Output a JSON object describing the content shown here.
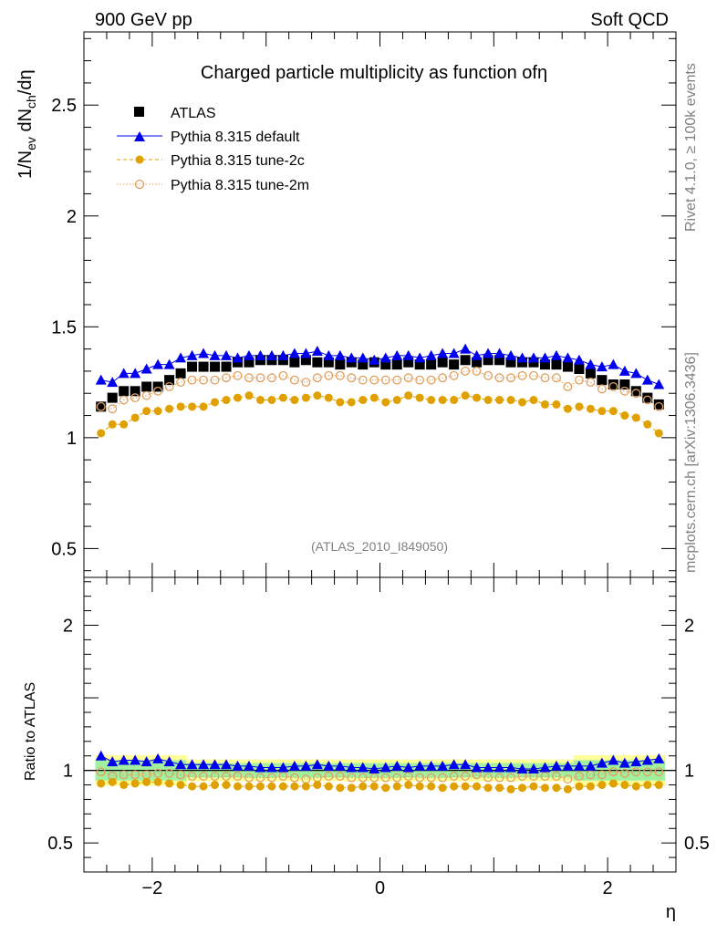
{
  "header": {
    "left": "900 GeV pp",
    "right": "Soft QCD"
  },
  "side_labels": {
    "rivet": "Rivet 4.1.0, ≥ 100k events",
    "mcplots": "mcplots.cern.ch [arXiv:1306.3436]"
  },
  "chart_data": [
    {
      "type": "scatter",
      "panel": "main",
      "title": "Charged particle multiplicity as function ofη",
      "xlabel": "η",
      "ylabel": "1/N_ev dN_ch/dη",
      "ylabel_parts": {
        "a": "1/N",
        "a_sub": "ev",
        "b": " dN",
        "b_sub": "ch",
        "c": "/dη"
      },
      "xlim": [
        -2.6,
        2.6
      ],
      "ylim": [
        0.37,
        2.83
      ],
      "yticks": [
        0.5,
        1,
        1.5,
        2,
        2.5
      ],
      "ytick_labels": [
        "0.5",
        "1",
        "1.5",
        "2",
        "2.5"
      ],
      "watermark": "(ATLAS_2010_I849050)",
      "legend_position": "top-left",
      "x": [
        -2.45,
        -2.35,
        -2.25,
        -2.15,
        -2.05,
        -1.95,
        -1.85,
        -1.75,
        -1.65,
        -1.55,
        -1.45,
        -1.35,
        -1.25,
        -1.15,
        -1.05,
        -0.95,
        -0.85,
        -0.75,
        -0.65,
        -0.55,
        -0.45,
        -0.35,
        -0.25,
        -0.15,
        -0.05,
        0.05,
        0.15,
        0.25,
        0.35,
        0.45,
        0.55,
        0.65,
        0.75,
        0.85,
        0.95,
        1.05,
        1.15,
        1.25,
        1.35,
        1.45,
        1.55,
        1.65,
        1.75,
        1.85,
        1.95,
        2.05,
        2.15,
        2.25,
        2.35,
        2.45
      ],
      "series": [
        {
          "name": "ATLAS",
          "marker": "square",
          "color": "#000000",
          "values": [
            1.14,
            1.18,
            1.21,
            1.21,
            1.23,
            1.23,
            1.26,
            1.29,
            1.32,
            1.32,
            1.32,
            1.32,
            1.34,
            1.34,
            1.35,
            1.35,
            1.35,
            1.34,
            1.35,
            1.34,
            1.34,
            1.33,
            1.34,
            1.33,
            1.34,
            1.33,
            1.33,
            1.34,
            1.33,
            1.33,
            1.34,
            1.33,
            1.35,
            1.34,
            1.35,
            1.35,
            1.34,
            1.34,
            1.34,
            1.33,
            1.33,
            1.32,
            1.31,
            1.29,
            1.26,
            1.24,
            1.24,
            1.21,
            1.18,
            1.15
          ]
        },
        {
          "name": "Pythia 8.315 default",
          "marker": "triangle",
          "color": "#0000ee",
          "values": [
            1.26,
            1.25,
            1.29,
            1.29,
            1.31,
            1.33,
            1.33,
            1.36,
            1.37,
            1.38,
            1.37,
            1.37,
            1.36,
            1.37,
            1.37,
            1.37,
            1.37,
            1.38,
            1.38,
            1.39,
            1.37,
            1.37,
            1.36,
            1.36,
            1.35,
            1.36,
            1.37,
            1.37,
            1.36,
            1.37,
            1.38,
            1.38,
            1.4,
            1.37,
            1.38,
            1.38,
            1.37,
            1.36,
            1.36,
            1.36,
            1.37,
            1.36,
            1.35,
            1.33,
            1.32,
            1.33,
            1.3,
            1.29,
            1.26,
            1.24
          ]
        },
        {
          "name": "Pythia 8.315 tune-2c",
          "marker": "dot",
          "color": "#e0a000",
          "values": [
            1.02,
            1.06,
            1.06,
            1.09,
            1.12,
            1.12,
            1.13,
            1.14,
            1.14,
            1.14,
            1.16,
            1.17,
            1.18,
            1.19,
            1.17,
            1.17,
            1.18,
            1.17,
            1.18,
            1.19,
            1.18,
            1.16,
            1.16,
            1.17,
            1.18,
            1.16,
            1.17,
            1.19,
            1.18,
            1.17,
            1.17,
            1.17,
            1.19,
            1.18,
            1.17,
            1.17,
            1.17,
            1.16,
            1.17,
            1.15,
            1.15,
            1.13,
            1.14,
            1.13,
            1.12,
            1.12,
            1.1,
            1.09,
            1.06,
            1.02
          ]
        },
        {
          "name": "Pythia 8.315 tune-2m",
          "marker": "circle-open",
          "color": "#e0a060",
          "values": [
            1.14,
            1.13,
            1.17,
            1.18,
            1.19,
            1.21,
            1.23,
            1.25,
            1.26,
            1.26,
            1.26,
            1.27,
            1.28,
            1.27,
            1.27,
            1.27,
            1.28,
            1.26,
            1.25,
            1.27,
            1.28,
            1.28,
            1.27,
            1.26,
            1.26,
            1.26,
            1.26,
            1.27,
            1.26,
            1.26,
            1.27,
            1.28,
            1.3,
            1.3,
            1.28,
            1.27,
            1.27,
            1.28,
            1.28,
            1.27,
            1.27,
            1.23,
            1.26,
            1.25,
            1.22,
            1.23,
            1.21,
            1.2,
            1.17,
            1.14
          ]
        }
      ]
    },
    {
      "type": "scatter",
      "panel": "ratio",
      "ylabel": "Ratio to ATLAS",
      "xlabel": "η",
      "xlim": [
        -2.6,
        2.6
      ],
      "ylim": [
        0.3,
        2.33
      ],
      "xticks": [
        -2,
        0,
        2
      ],
      "xtick_labels": [
        "−2",
        "0",
        "2"
      ],
      "yticks": [
        0.5,
        1,
        2
      ],
      "ytick_labels": [
        "0.5",
        "1",
        "2"
      ],
      "band_inner": 0.05,
      "band_outer": 0.075,
      "band_colors": {
        "inner": "#a0f0a0",
        "outer": "#ffff99"
      },
      "series": [
        {
          "name": "Pythia 8.315 default",
          "values": [
            1.1,
            1.06,
            1.07,
            1.07,
            1.06,
            1.08,
            1.06,
            1.04,
            1.04,
            1.04,
            1.04,
            1.04,
            1.03,
            1.03,
            1.02,
            1.02,
            1.02,
            1.03,
            1.03,
            1.04,
            1.03,
            1.03,
            1.02,
            1.02,
            1.01,
            1.02,
            1.03,
            1.02,
            1.03,
            1.03,
            1.03,
            1.04,
            1.04,
            1.02,
            1.02,
            1.02,
            1.02,
            1.01,
            1.01,
            1.02,
            1.03,
            1.03,
            1.03,
            1.03,
            1.05,
            1.07,
            1.05,
            1.06,
            1.07,
            1.08
          ]
        },
        {
          "name": "Pythia 8.315 tune-2c",
          "values": [
            0.91,
            0.92,
            0.9,
            0.91,
            0.92,
            0.92,
            0.91,
            0.9,
            0.89,
            0.89,
            0.9,
            0.9,
            0.89,
            0.89,
            0.89,
            0.89,
            0.89,
            0.89,
            0.89,
            0.9,
            0.89,
            0.88,
            0.88,
            0.89,
            0.89,
            0.88,
            0.89,
            0.9,
            0.89,
            0.89,
            0.88,
            0.89,
            0.89,
            0.89,
            0.88,
            0.88,
            0.87,
            0.88,
            0.89,
            0.88,
            0.88,
            0.87,
            0.89,
            0.89,
            0.9,
            0.91,
            0.9,
            0.89,
            0.9,
            0.9
          ]
        },
        {
          "name": "Pythia 8.315 tune-2m",
          "values": [
            0.99,
            0.96,
            0.97,
            0.97,
            0.97,
            0.98,
            0.98,
            0.97,
            0.96,
            0.96,
            0.96,
            0.96,
            0.96,
            0.95,
            0.95,
            0.95,
            0.96,
            0.95,
            0.94,
            0.95,
            0.96,
            0.96,
            0.95,
            0.95,
            0.95,
            0.95,
            0.95,
            0.96,
            0.95,
            0.95,
            0.95,
            0.96,
            0.96,
            0.97,
            0.95,
            0.95,
            0.95,
            0.96,
            0.96,
            0.96,
            0.96,
            0.94,
            0.96,
            0.97,
            0.97,
            0.99,
            0.98,
            0.99,
            0.99,
            0.99
          ]
        }
      ]
    }
  ]
}
